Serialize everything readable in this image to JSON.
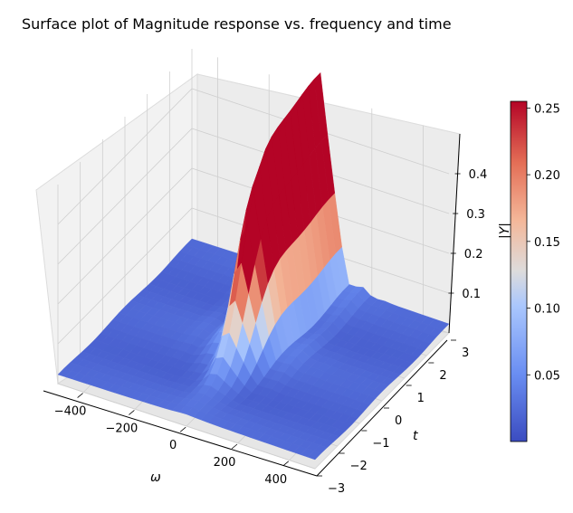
{
  "chart_data": {
    "type": "surface",
    "title": "Surface plot of Magnitude response vs. frequency and time",
    "xlabel": "ω",
    "ylabel": "t",
    "zlabel": "|Y|",
    "xlim": [
      -500,
      500
    ],
    "ylim": [
      -3,
      3
    ],
    "zlim": [
      0,
      0.5
    ],
    "x_ticks": [
      -400,
      -200,
      0,
      200,
      400
    ],
    "x_tick_labels": [
      "−400",
      "−200",
      "0",
      "200",
      "400"
    ],
    "y_ticks": [
      -3,
      -2,
      -1,
      0,
      1,
      2,
      3
    ],
    "y_tick_labels": [
      "−3",
      "−2",
      "−1",
      "0",
      "1",
      "2",
      "3"
    ],
    "z_ticks": [
      0.1,
      0.2,
      0.3,
      0.4
    ],
    "z_tick_labels": [
      "0.1",
      "0.2",
      "0.3",
      "0.4"
    ],
    "colormap": "coolwarm",
    "colorbar": {
      "range": [
        0.0,
        0.255
      ],
      "ticks": [
        0.05,
        0.1,
        0.15,
        0.2,
        0.25
      ],
      "tick_labels": [
        "0.05",
        "0.10",
        "0.15",
        "0.20",
        "0.25"
      ]
    },
    "surface": {
      "peak_magnitude": 0.49,
      "main_peak_frequency": 0,
      "main_peak_time_range": [
        0,
        3
      ],
      "description_points": [
        {
          "omega": 0,
          "t": 3,
          "magnitude": 0.49
        },
        {
          "omega": 0,
          "t": 1,
          "magnitude": 0.45
        },
        {
          "omega": 0,
          "t": -1,
          "magnitude": 0.12
        },
        {
          "omega": 0,
          "t": -3,
          "magnitude": 0.03
        },
        {
          "omega": -400,
          "t": 0,
          "magnitude": 0.02
        },
        {
          "omega": 400,
          "t": 0,
          "magnitude": 0.02
        }
      ]
    },
    "grid": true,
    "colorbar_position": "right"
  }
}
